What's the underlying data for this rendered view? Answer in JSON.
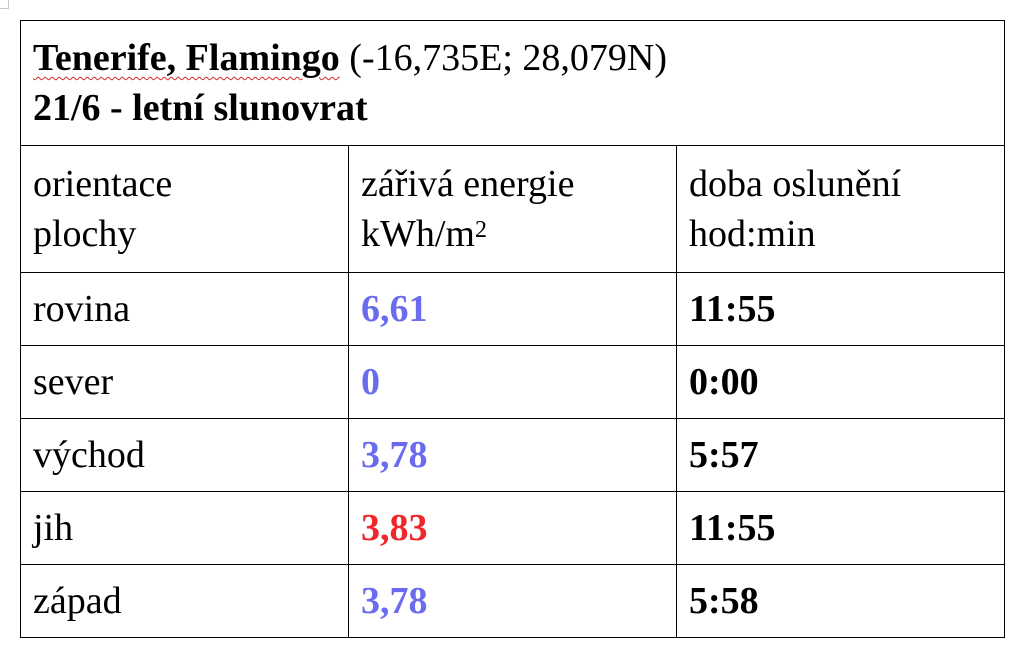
{
  "header": {
    "place": "Tenerife, Flamingo",
    "coords": "(-16,735E; 28,079N)",
    "subtitle": "21/6 - letní slunovrat"
  },
  "columns": {
    "orientation_line1": "orientace",
    "orientation_line2": "plochy",
    "energy_line1": "zářivá energie",
    "energy_unit": "kWh/m",
    "energy_unit_exp": "2",
    "duration_line1": "doba oslunění",
    "duration_line2": "hod:min"
  },
  "rows": [
    {
      "orientation": "rovina",
      "energy": "6,61",
      "duration": "11:55",
      "energy_color": "#6b6bf0"
    },
    {
      "orientation": "sever",
      "energy": "0",
      "duration": "0:00",
      "energy_color": "#6b6bf0"
    },
    {
      "orientation": "východ",
      "energy": "3,78",
      "duration": "5:57",
      "energy_color": "#6b6bf0"
    },
    {
      "orientation": "jih",
      "energy": "3,83",
      "duration": "11:55",
      "energy_color": "#f0262a"
    },
    {
      "orientation": "západ",
      "energy": "3,78",
      "duration": "5:58",
      "energy_color": "#6b6bf0"
    }
  ],
  "colors": {
    "energy_default": "#6b6bf0",
    "energy_highlight": "#f0262a",
    "spellcheck_underline": "#d42a2a"
  }
}
